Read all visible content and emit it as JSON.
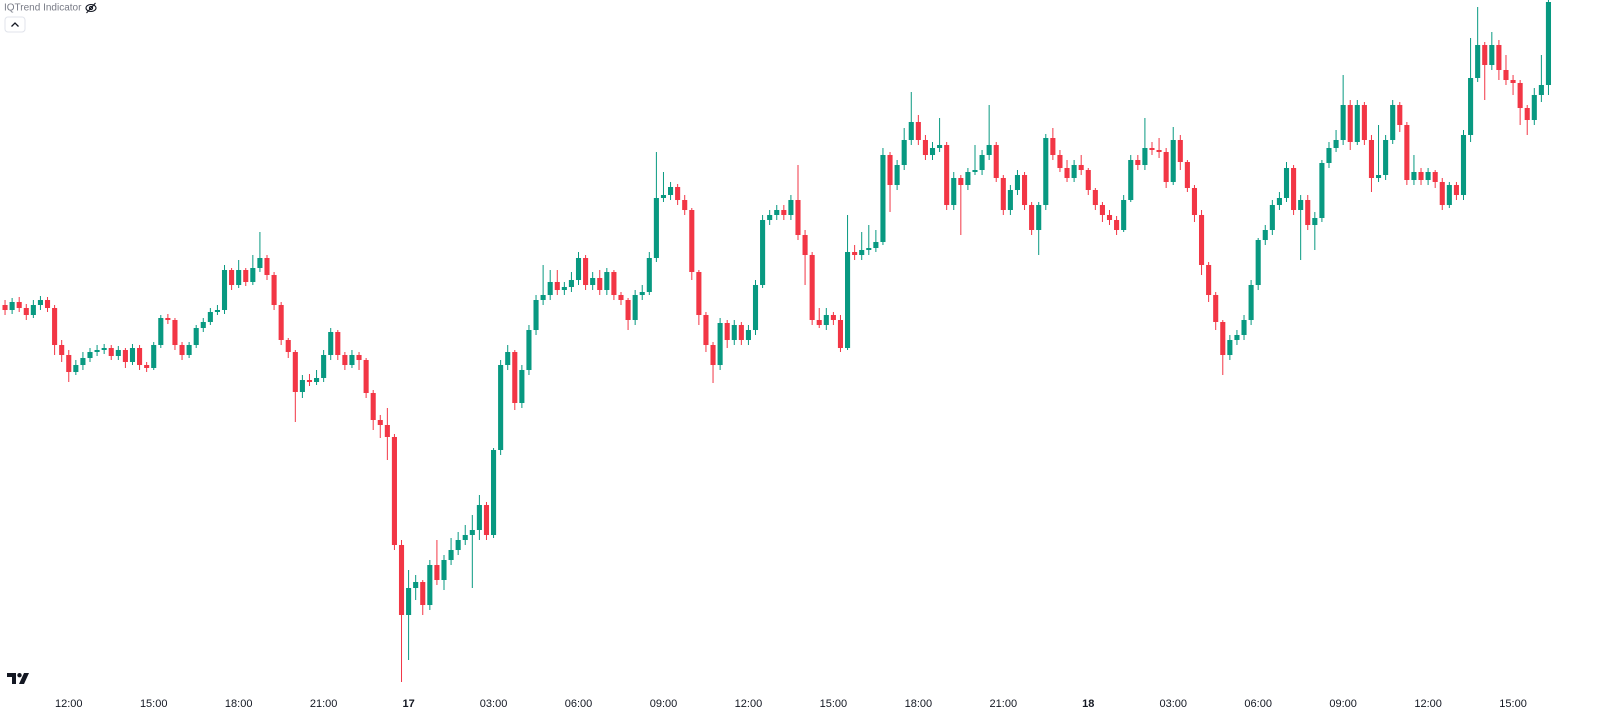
{
  "indicator": {
    "name": "IQTrend Indicator"
  },
  "chart_data": {
    "type": "candlestick",
    "categories": [
      null,
      null,
      null,
      null,
      null,
      null,
      null,
      null,
      null,
      "12:00",
      null,
      null,
      null,
      null,
      null,
      null,
      null,
      null,
      null,
      null,
      null,
      "15:00",
      null,
      null,
      null,
      null,
      null,
      null,
      null,
      null,
      null,
      null,
      null,
      "18:00",
      null,
      null,
      null,
      null,
      null,
      null,
      null,
      null,
      null,
      null,
      null,
      "21:00",
      null,
      null,
      null,
      null,
      null,
      null,
      null,
      null,
      null,
      null,
      null,
      "17",
      null,
      null,
      null,
      null,
      null,
      null,
      null,
      null,
      null,
      null,
      null,
      "03:00",
      null,
      null,
      null,
      null,
      null,
      null,
      null,
      null,
      null,
      null,
      null,
      "06:00",
      null,
      null,
      null,
      null,
      null,
      null,
      null,
      null,
      null,
      null,
      null,
      "09:00",
      null,
      null,
      null,
      null,
      null,
      null,
      null,
      null,
      null,
      null,
      null,
      "12:00",
      null,
      null,
      null,
      null,
      null,
      null,
      null,
      null,
      null,
      null,
      null,
      "15:00",
      null,
      null,
      null,
      null,
      null,
      null,
      null,
      null,
      null,
      null,
      null,
      "18:00",
      null,
      null,
      null,
      null,
      null,
      null,
      null,
      null,
      null,
      null,
      null,
      "21:00",
      null,
      null,
      null,
      null,
      null,
      null,
      null,
      null,
      null,
      null,
      null,
      "18",
      null,
      null,
      null,
      null,
      null,
      null,
      null,
      null,
      null,
      null,
      null,
      "03:00",
      null,
      null,
      null,
      null,
      null,
      null,
      null,
      null,
      null,
      null,
      null,
      "06:00",
      null,
      null,
      null,
      null,
      null,
      null,
      null,
      null,
      null,
      null,
      null,
      "09:00",
      null,
      null,
      null,
      null,
      null,
      null,
      null,
      null,
      null,
      null,
      null,
      "12:00",
      null,
      null,
      null,
      null,
      null,
      null,
      null,
      null,
      null,
      null,
      null,
      "15:00",
      null,
      null,
      null,
      null,
      null
    ],
    "open": [
      395,
      390,
      398,
      392,
      385,
      395,
      400,
      392,
      355,
      345,
      328,
      335,
      342,
      348,
      350,
      352,
      344,
      350,
      338,
      352,
      335,
      332,
      355,
      382,
      380,
      355,
      345,
      355,
      372,
      378,
      388,
      390,
      430,
      415,
      430,
      418,
      432,
      442,
      425,
      395,
      360,
      348,
      308,
      320,
      318,
      322,
      345,
      368,
      345,
      335,
      345,
      340,
      307,
      280,
      275,
      263,
      155,
      85,
      112,
      118,
      95,
      135,
      120,
      140,
      150,
      160,
      165,
      170,
      195,
      165,
      250,
      335,
      348,
      297,
      330,
      370,
      400,
      405,
      418,
      410,
      413,
      420,
      442,
      415,
      422,
      410,
      428,
      405,
      400,
      380,
      405,
      408,
      442,
      502,
      505,
      513,
      500,
      490,
      428,
      385,
      355,
      335,
      377,
      360,
      375,
      360,
      370,
      415,
      480,
      485,
      490,
      485,
      500,
      465,
      445,
      380,
      375,
      385,
      380,
      352,
      448,
      445,
      450,
      452,
      458,
      545,
      515,
      535,
      560,
      578,
      560,
      545,
      552,
      555,
      495,
      522,
      515,
      528,
      530,
      545,
      555,
      522,
      490,
      510,
      525,
      495,
      470,
      495,
      562,
      545,
      532,
      522,
      535,
      530,
      510,
      495,
      485,
      480,
      470,
      500,
      540,
      535,
      552,
      550,
      548,
      518,
      560,
      538,
      512,
      485,
      435,
      405,
      378,
      345,
      360,
      365,
      380,
      415,
      460,
      470,
      495,
      502,
      532,
      490,
      500,
      475,
      482,
      537,
      552,
      560,
      595,
      558,
      595,
      560,
      522,
      525,
      560,
      595,
      575,
      520,
      528,
      520,
      528,
      518,
      495,
      515,
      505,
      565,
      622,
      655,
      635,
      655,
      630,
      620,
      617,
      592,
      580,
      605,
      615
    ],
    "high": [
      400,
      402,
      403,
      396,
      400,
      404,
      403,
      395,
      360,
      350,
      340,
      348,
      352,
      355,
      356,
      355,
      354,
      352,
      356,
      355,
      338,
      358,
      385,
      386,
      382,
      358,
      358,
      375,
      382,
      392,
      395,
      435,
      432,
      440,
      432,
      445,
      468,
      445,
      428,
      398,
      362,
      350,
      325,
      326,
      330,
      350,
      372,
      370,
      348,
      350,
      348,
      342,
      310,
      285,
      292,
      266,
      160,
      130,
      125,
      120,
      140,
      160,
      145,
      162,
      168,
      175,
      185,
      205,
      198,
      252,
      340,
      355,
      350,
      335,
      375,
      405,
      435,
      430,
      430,
      418,
      428,
      448,
      445,
      428,
      430,
      432,
      430,
      408,
      402,
      410,
      415,
      448,
      548,
      528,
      518,
      516,
      505,
      492,
      430,
      388,
      358,
      382,
      380,
      380,
      378,
      375,
      420,
      485,
      490,
      495,
      495,
      505,
      535,
      470,
      448,
      392,
      392,
      388,
      385,
      485,
      455,
      468,
      475,
      470,
      552,
      548,
      540,
      572,
      608,
      585,
      565,
      558,
      582,
      558,
      528,
      525,
      532,
      555,
      550,
      595,
      558,
      525,
      515,
      530,
      528,
      498,
      498,
      566,
      572,
      550,
      540,
      540,
      545,
      532,
      512,
      498,
      490,
      484,
      505,
      545,
      545,
      582,
      558,
      562,
      552,
      573,
      565,
      540,
      515,
      490,
      438,
      408,
      380,
      365,
      370,
      385,
      420,
      462,
      475,
      500,
      508,
      538,
      535,
      505,
      505,
      488,
      540,
      558,
      570,
      625,
      600,
      600,
      598,
      565,
      575,
      565,
      600,
      598,
      578,
      545,
      532,
      532,
      530,
      522,
      518,
      518,
      570,
      662,
      693,
      658,
      668,
      660,
      645,
      625,
      620,
      595,
      612,
      645,
      700
    ],
    "low": [
      385,
      386,
      388,
      380,
      382,
      390,
      388,
      345,
      338,
      318,
      325,
      330,
      338,
      344,
      346,
      340,
      340,
      332,
      335,
      330,
      328,
      330,
      352,
      376,
      350,
      340,
      342,
      352,
      368,
      375,
      385,
      386,
      410,
      412,
      414,
      415,
      428,
      420,
      390,
      355,
      342,
      278,
      302,
      314,
      315,
      318,
      340,
      340,
      330,
      332,
      330,
      302,
      270,
      262,
      240,
      150,
      18,
      40,
      100,
      85,
      90,
      115,
      110,
      135,
      145,
      155,
      112,
      160,
      160,
      162,
      245,
      330,
      290,
      292,
      325,
      365,
      395,
      400,
      405,
      405,
      408,
      415,
      410,
      410,
      405,
      405,
      400,
      395,
      370,
      375,
      400,
      405,
      438,
      498,
      500,
      495,
      485,
      420,
      375,
      348,
      317,
      330,
      352,
      355,
      355,
      355,
      365,
      412,
      475,
      480,
      480,
      480,
      460,
      415,
      375,
      372,
      370,
      375,
      348,
      350,
      440,
      440,
      445,
      448,
      455,
      488,
      510,
      530,
      555,
      555,
      540,
      540,
      548,
      490,
      490,
      465,
      510,
      525,
      525,
      540,
      518,
      485,
      485,
      505,
      490,
      465,
      445,
      490,
      540,
      528,
      518,
      518,
      525,
      505,
      490,
      478,
      475,
      465,
      468,
      498,
      530,
      530,
      545,
      542,
      512,
      515,
      530,
      508,
      478,
      425,
      398,
      370,
      325,
      340,
      355,
      360,
      375,
      410,
      455,
      465,
      490,
      498,
      485,
      440,
      470,
      450,
      478,
      532,
      548,
      555,
      550,
      555,
      555,
      508,
      518,
      520,
      556,
      568,
      515,
      515,
      515,
      515,
      512,
      490,
      492,
      500,
      500,
      558,
      618,
      600,
      630,
      620,
      615,
      605,
      575,
      565,
      575,
      598,
      605
    ],
    "close": [
      390,
      398,
      392,
      385,
      395,
      400,
      392,
      355,
      345,
      328,
      335,
      342,
      348,
      350,
      352,
      344,
      350,
      338,
      352,
      335,
      332,
      355,
      382,
      380,
      355,
      345,
      355,
      372,
      378,
      388,
      390,
      430,
      415,
      430,
      418,
      432,
      442,
      425,
      395,
      360,
      348,
      308,
      320,
      318,
      322,
      345,
      368,
      345,
      335,
      345,
      340,
      307,
      280,
      275,
      263,
      155,
      85,
      112,
      118,
      95,
      135,
      120,
      140,
      150,
      160,
      165,
      170,
      195,
      165,
      250,
      335,
      348,
      297,
      330,
      370,
      400,
      405,
      418,
      410,
      413,
      420,
      442,
      415,
      422,
      410,
      428,
      405,
      400,
      380,
      405,
      408,
      442,
      502,
      505,
      513,
      500,
      490,
      428,
      385,
      355,
      335,
      377,
      360,
      375,
      360,
      370,
      415,
      480,
      485,
      490,
      485,
      500,
      465,
      445,
      380,
      375,
      385,
      380,
      352,
      448,
      445,
      450,
      452,
      458,
      545,
      515,
      535,
      560,
      578,
      560,
      545,
      552,
      555,
      495,
      522,
      515,
      528,
      530,
      545,
      555,
      522,
      490,
      510,
      525,
      495,
      470,
      495,
      562,
      545,
      532,
      522,
      535,
      530,
      510,
      495,
      485,
      480,
      470,
      500,
      540,
      535,
      552,
      550,
      548,
      518,
      560,
      538,
      512,
      485,
      435,
      405,
      378,
      345,
      360,
      365,
      380,
      415,
      460,
      470,
      495,
      502,
      532,
      490,
      500,
      475,
      482,
      537,
      552,
      560,
      595,
      558,
      595,
      560,
      522,
      525,
      560,
      595,
      575,
      520,
      528,
      520,
      528,
      518,
      495,
      515,
      505,
      565,
      622,
      655,
      635,
      655,
      630,
      620,
      617,
      592,
      580,
      605,
      615,
      698
    ],
    "ylim": [
      10,
      700
    ],
    "up_color": "#089981",
    "down_color": "#f23645"
  }
}
